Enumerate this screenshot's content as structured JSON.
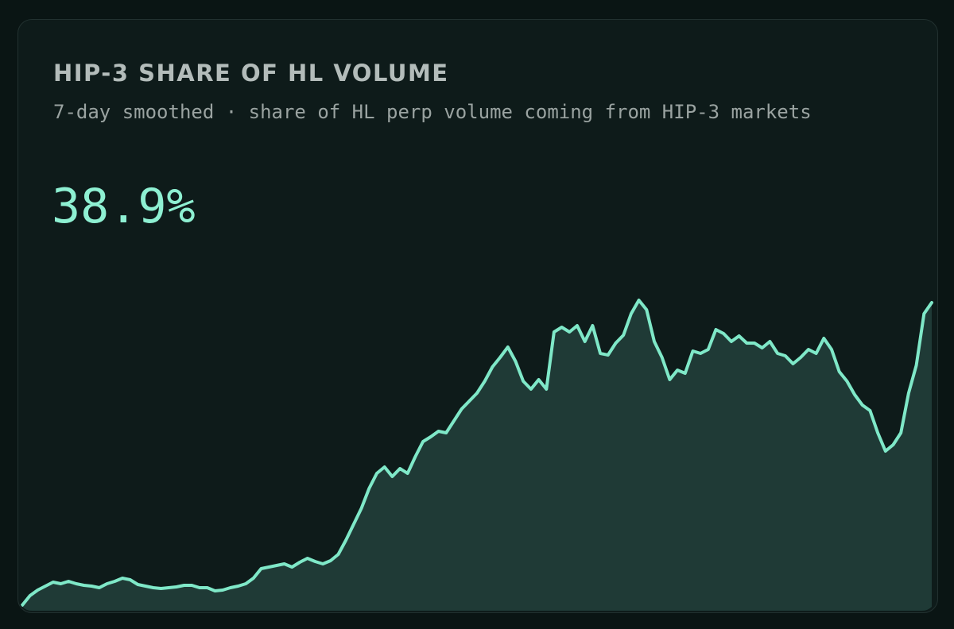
{
  "card": {
    "title": "HIP-3 SHARE OF HL VOLUME",
    "subtitle": "7-day smoothed · share of HL perp volume coming from HIP-3 markets",
    "headline": "38.9%"
  },
  "chart_data": {
    "type": "area",
    "color": "#7fe8c8",
    "fill": "#1f3a36",
    "values": [
      0.8,
      2.0,
      2.7,
      3.2,
      3.7,
      3.5,
      3.8,
      3.5,
      3.3,
      3.2,
      3.0,
      3.5,
      3.8,
      4.2,
      4.0,
      3.4,
      3.2,
      3.0,
      2.9,
      3.0,
      3.1,
      3.3,
      3.3,
      3.0,
      3.0,
      2.6,
      2.7,
      3.0,
      3.2,
      3.5,
      4.2,
      5.4,
      5.6,
      5.8,
      6.0,
      5.6,
      6.2,
      6.7,
      6.3,
      6.0,
      6.4,
      7.2,
      9.0,
      11.0,
      13.0,
      15.5,
      17.4,
      18.2,
      17.0,
      18.0,
      17.4,
      19.5,
      21.4,
      22.0,
      22.7,
      22.5,
      24.0,
      25.5,
      26.5,
      27.5,
      29.0,
      30.8,
      32.0,
      33.3,
      31.5,
      29.0,
      28.0,
      29.2,
      28.0,
      35.2,
      35.8,
      35.2,
      36.0,
      34.0,
      36.0,
      32.5,
      32.3,
      33.8,
      34.8,
      37.5,
      39.2,
      38.0,
      34.0,
      32.0,
      29.2,
      30.4,
      30.0,
      32.8,
      32.5,
      33.0,
      35.5,
      35.0,
      34.0,
      34.7,
      33.8,
      33.8,
      33.2,
      34.0,
      32.5,
      32.2,
      31.2,
      32.0,
      33.0,
      32.5,
      34.4,
      33.0,
      30.2,
      29.0,
      27.3,
      26.0,
      25.3,
      22.5,
      20.2,
      21.0,
      22.5,
      27.5,
      31.0,
      37.5,
      38.9
    ]
  }
}
